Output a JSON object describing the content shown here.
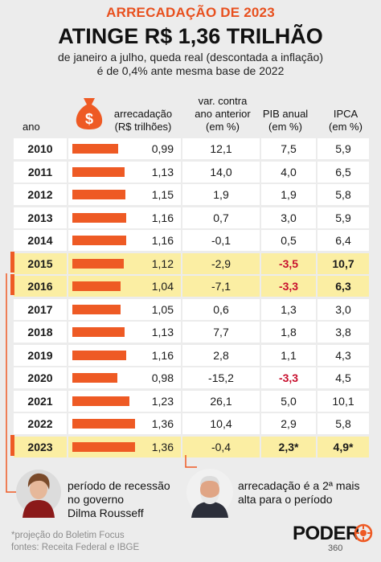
{
  "header": {
    "title": "ARRECADAÇÃO DE 2023",
    "headline": "ATINGE R$ 1,36 TRILHÃO",
    "subtitle_line1": "de janeiro a julho, queda real (descontada a inflação)",
    "subtitle_line2": "é de 0,4% ante mesma base de 2022"
  },
  "columns": {
    "ano": "ano",
    "arrecadacao_1": "arrecadação",
    "arrecadacao_2": "(R$ trilhões)",
    "var_1": "var. contra",
    "var_2": "ano anterior",
    "var_3": "(em %)",
    "pib_1": "PIB anual",
    "pib_2": "(em %)",
    "ipca_1": "IPCA",
    "ipca_2": "(em %)"
  },
  "chart_data": {
    "type": "table",
    "title": "ARRECADAÇÃO DE 2023",
    "subtitle": "ATINGE R$ 1,36 TRILHÃO",
    "bar_max": 1.36,
    "rows": [
      {
        "year": "2010",
        "value": 0.99,
        "value_label": "0,99",
        "var": "12,1",
        "pib": "7,5",
        "ipca": "5,9",
        "highlight": false,
        "pib_red": false,
        "ipca_bold": false
      },
      {
        "year": "2011",
        "value": 1.13,
        "value_label": "1,13",
        "var": "14,0",
        "pib": "4,0",
        "ipca": "6,5",
        "highlight": false,
        "pib_red": false,
        "ipca_bold": false
      },
      {
        "year": "2012",
        "value": 1.15,
        "value_label": "1,15",
        "var": "1,9",
        "pib": "1,9",
        "ipca": "5,8",
        "highlight": false,
        "pib_red": false,
        "ipca_bold": false
      },
      {
        "year": "2013",
        "value": 1.16,
        "value_label": "1,16",
        "var": "0,7",
        "pib": "3,0",
        "ipca": "5,9",
        "highlight": false,
        "pib_red": false,
        "ipca_bold": false
      },
      {
        "year": "2014",
        "value": 1.16,
        "value_label": "1,16",
        "var": "-0,1",
        "pib": "0,5",
        "ipca": "6,4",
        "highlight": false,
        "pib_red": false,
        "ipca_bold": false
      },
      {
        "year": "2015",
        "value": 1.12,
        "value_label": "1,12",
        "var": "-2,9",
        "pib": "-3,5",
        "ipca": "10,7",
        "highlight": true,
        "pib_red": true,
        "ipca_bold": true
      },
      {
        "year": "2016",
        "value": 1.04,
        "value_label": "1,04",
        "var": "-7,1",
        "pib": "-3,3",
        "ipca": "6,3",
        "highlight": true,
        "pib_red": true,
        "ipca_bold": true
      },
      {
        "year": "2017",
        "value": 1.05,
        "value_label": "1,05",
        "var": "0,6",
        "pib": "1,3",
        "ipca": "3,0",
        "highlight": false,
        "pib_red": false,
        "ipca_bold": false
      },
      {
        "year": "2018",
        "value": 1.13,
        "value_label": "1,13",
        "var": "7,7",
        "pib": "1,8",
        "ipca": "3,8",
        "highlight": false,
        "pib_red": false,
        "ipca_bold": false
      },
      {
        "year": "2019",
        "value": 1.16,
        "value_label": "1,16",
        "var": "2,8",
        "pib": "1,1",
        "ipca": "4,3",
        "highlight": false,
        "pib_red": false,
        "ipca_bold": false
      },
      {
        "year": "2020",
        "value": 0.98,
        "value_label": "0,98",
        "var": "-15,2",
        "pib": "-3,3",
        "ipca": "4,5",
        "highlight": false,
        "pib_red": true,
        "ipca_bold": false
      },
      {
        "year": "2021",
        "value": 1.23,
        "value_label": "1,23",
        "var": "26,1",
        "pib": "5,0",
        "ipca": "10,1",
        "highlight": false,
        "pib_red": false,
        "ipca_bold": false
      },
      {
        "year": "2022",
        "value": 1.36,
        "value_label": "1,36",
        "var": "10,4",
        "pib": "2,9",
        "ipca": "5,8",
        "highlight": false,
        "pib_red": false,
        "ipca_bold": false
      },
      {
        "year": "2023",
        "value": 1.36,
        "value_label": "1,36",
        "var": "-0,4",
        "pib": "2,3*",
        "ipca": "4,9*",
        "highlight": true,
        "pib_red": false,
        "ipca_bold": true
      }
    ]
  },
  "notes": {
    "left_1": "período de recessão",
    "left_2": "no governo",
    "left_3": "Dilma Rousseff",
    "right_1": "arrecadação é a 2ª mais",
    "right_2": "alta para o período"
  },
  "footer": {
    "note1": "*projeção do Boletim Focus",
    "note2": "fontes: Receita Federal e IBGE",
    "logo_main": "PODER",
    "logo_sub": "360"
  },
  "colors": {
    "accent": "#ee5a24",
    "title": "#e8501e",
    "highlight": "#fbeea3",
    "negative": "#c8102e"
  },
  "icons": [
    "money-bag-icon",
    "dilma-portrait",
    "lula-portrait",
    "poder360-logo-icon"
  ]
}
